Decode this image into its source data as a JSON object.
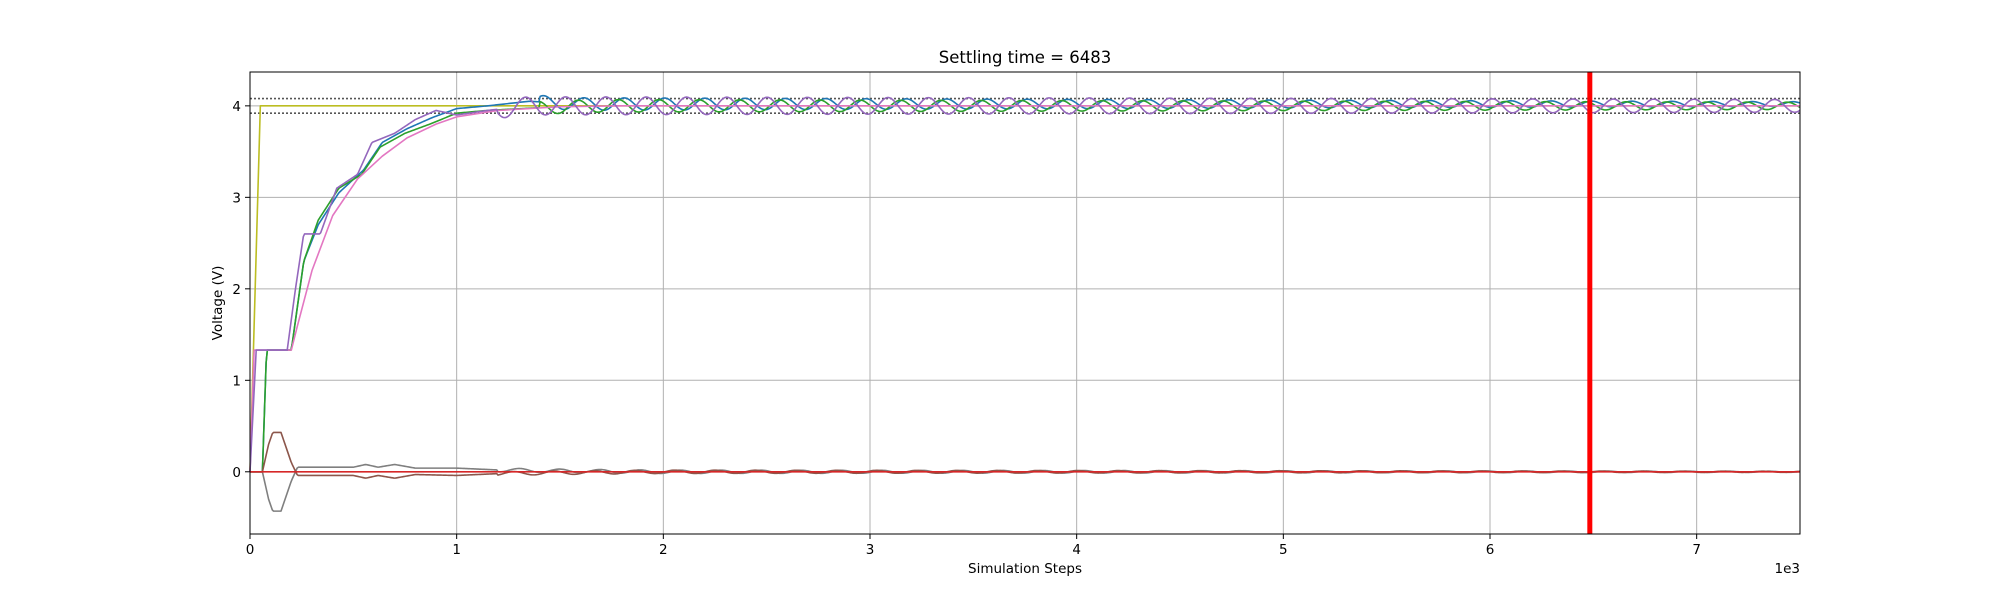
{
  "chart_data": {
    "type": "line",
    "title": "Settling time = 6483",
    "xlabel": "Simulation Steps",
    "ylabel": "Voltage (V)",
    "x_offset_label": "1e3",
    "xlim": [
      0,
      7500
    ],
    "ylim": [
      -0.68,
      4.37
    ],
    "grid": true,
    "x_ticks": [
      {
        "value": 0,
        "label": "0"
      },
      {
        "value": 1000,
        "label": "1"
      },
      {
        "value": 2000,
        "label": "2"
      },
      {
        "value": 3000,
        "label": "3"
      },
      {
        "value": 4000,
        "label": "4"
      },
      {
        "value": 5000,
        "label": "5"
      },
      {
        "value": 6000,
        "label": "6"
      },
      {
        "value": 7000,
        "label": "7"
      }
    ],
    "y_ticks": [
      {
        "value": 0,
        "label": "0"
      },
      {
        "value": 1,
        "label": "1"
      },
      {
        "value": 2,
        "label": "2"
      },
      {
        "value": 3,
        "label": "3"
      },
      {
        "value": 4,
        "label": "4"
      }
    ],
    "reference_lines": {
      "horizontal": [
        {
          "y": 4.08,
          "color": "#555555",
          "style": "dotted"
        },
        {
          "y": 3.92,
          "color": "#555555",
          "style": "dotted"
        }
      ],
      "vertical": [
        {
          "x": 6483,
          "color": "#ff0000",
          "width": 5
        }
      ]
    },
    "series": [
      {
        "color": "#bcbd22",
        "points": [
          [
            0,
            0
          ],
          [
            50,
            4.0
          ],
          [
            7500,
            4.0
          ]
        ]
      },
      {
        "color": "#1f77b4",
        "points": [
          [
            0,
            0
          ],
          [
            60,
            0
          ],
          [
            80,
            1.33
          ],
          [
            200,
            1.33
          ],
          [
            260,
            2.3
          ],
          [
            330,
            2.7
          ],
          [
            430,
            3.05
          ],
          [
            550,
            3.3
          ],
          [
            640,
            3.6
          ],
          [
            760,
            3.75
          ],
          [
            880,
            3.87
          ],
          [
            1000,
            3.97
          ],
          [
            1150,
            4.0
          ],
          [
            1350,
            4.05
          ],
          [
            1600,
            4.02
          ],
          [
            2000,
            4.02
          ],
          [
            7500,
            4.02
          ]
        ],
        "osc": {
          "start": 1400,
          "amp_start": 0.07,
          "amp_end": 0.025,
          "period": 195
        }
      },
      {
        "color": "#2ca02c",
        "points": [
          [
            0,
            0
          ],
          [
            60,
            0
          ],
          [
            80,
            1.33
          ],
          [
            200,
            1.33
          ],
          [
            260,
            2.3
          ],
          [
            330,
            2.75
          ],
          [
            430,
            3.1
          ],
          [
            540,
            3.25
          ],
          [
            630,
            3.55
          ],
          [
            750,
            3.7
          ],
          [
            870,
            3.8
          ],
          [
            1000,
            3.92
          ],
          [
            1150,
            3.95
          ],
          [
            1400,
            3.98
          ],
          [
            1700,
            4.0
          ],
          [
            7500,
            4.0
          ]
        ],
        "osc": {
          "start": 1400,
          "amp_start": 0.07,
          "amp_end": 0.04,
          "period": 195
        }
      },
      {
        "color": "#e377c2",
        "points": [
          [
            0,
            0
          ],
          [
            20,
            1.33
          ],
          [
            200,
            1.33
          ],
          [
            230,
            1.6
          ],
          [
            300,
            2.2
          ],
          [
            400,
            2.8
          ],
          [
            520,
            3.2
          ],
          [
            640,
            3.45
          ],
          [
            760,
            3.65
          ],
          [
            900,
            3.8
          ],
          [
            1000,
            3.88
          ],
          [
            1200,
            3.95
          ],
          [
            1500,
            3.99
          ],
          [
            1800,
            4.0
          ],
          [
            7500,
            4.0
          ]
        ]
      },
      {
        "color": "#9467bd",
        "points": [
          [
            0,
            0
          ],
          [
            30,
            1.33
          ],
          [
            180,
            1.33
          ],
          [
            220,
            2.0
          ],
          [
            260,
            2.6
          ],
          [
            340,
            2.6
          ],
          [
            420,
            3.1
          ],
          [
            520,
            3.25
          ],
          [
            590,
            3.6
          ],
          [
            700,
            3.7
          ],
          [
            800,
            3.85
          ],
          [
            900,
            3.95
          ],
          [
            1000,
            3.9
          ],
          [
            1150,
            3.95
          ],
          [
            1350,
            4.0
          ],
          [
            7500,
            4.0
          ]
        ],
        "osc": {
          "start": 1200,
          "amp_start": 0.1,
          "amp_end": 0.07,
          "period": 195
        }
      },
      {
        "color": "#7f7f7f",
        "points": [
          [
            0,
            0
          ],
          [
            60,
            0
          ],
          [
            90,
            -0.3
          ],
          [
            110,
            -0.43
          ],
          [
            150,
            -0.43
          ],
          [
            200,
            -0.1
          ],
          [
            230,
            0.05
          ],
          [
            500,
            0.05
          ],
          [
            560,
            0.08
          ],
          [
            620,
            0.05
          ],
          [
            700,
            0.08
          ],
          [
            800,
            0.04
          ],
          [
            1000,
            0.04
          ],
          [
            1200,
            0.02
          ],
          [
            1500,
            0.01
          ],
          [
            2000,
            0.0
          ],
          [
            7500,
            0.0
          ]
        ],
        "osc": {
          "start": 1200,
          "amp_start": 0.02,
          "amp_end": 0.006,
          "period": 195
        }
      },
      {
        "color": "#8c564b",
        "points": [
          [
            0,
            0
          ],
          [
            60,
            0
          ],
          [
            90,
            0.3
          ],
          [
            110,
            0.43
          ],
          [
            150,
            0.43
          ],
          [
            200,
            0.1
          ],
          [
            230,
            -0.04
          ],
          [
            500,
            -0.04
          ],
          [
            560,
            -0.07
          ],
          [
            620,
            -0.04
          ],
          [
            700,
            -0.07
          ],
          [
            800,
            -0.03
          ],
          [
            1000,
            -0.04
          ],
          [
            1200,
            -0.02
          ],
          [
            1500,
            -0.01
          ],
          [
            2000,
            0.0
          ],
          [
            7500,
            0.0
          ]
        ],
        "osc": {
          "start": 1200,
          "amp_start": 0.02,
          "amp_end": 0.006,
          "period": 195
        }
      },
      {
        "color": "#d62728",
        "points": [
          [
            0,
            0
          ],
          [
            7500,
            0
          ]
        ]
      }
    ]
  }
}
